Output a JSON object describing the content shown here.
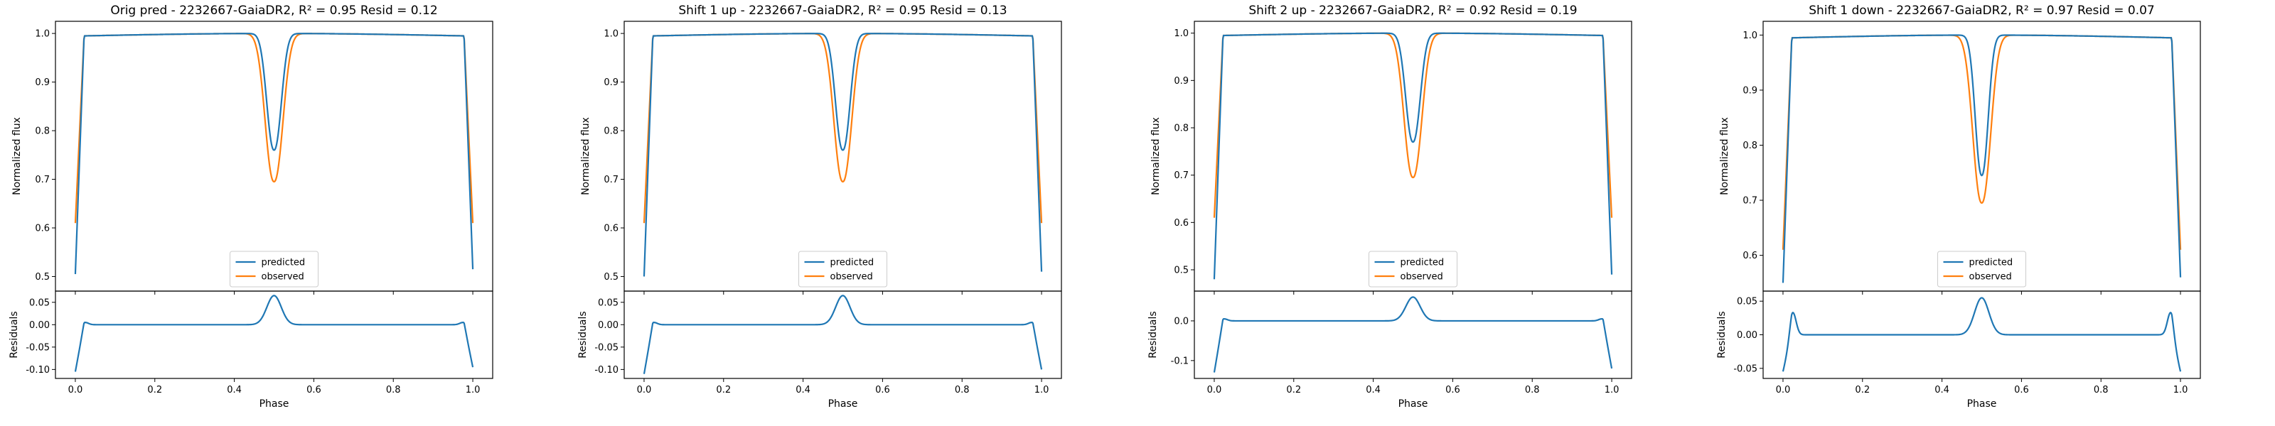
{
  "colors": {
    "predicted": "#1f77b4",
    "observed": "#ff7f0e"
  },
  "legend": {
    "predicted": "predicted",
    "observed": "observed"
  },
  "labels": {
    "x": "Phase",
    "y_top": "Normalized flux",
    "y_bottom": "Residuals"
  },
  "chart_data": [
    {
      "type": "line",
      "title": "Orig pred - 2232667-GaiaDR2, R² = 0.95 Resid = 0.12",
      "xlim": [
        -0.05,
        1.05
      ],
      "ylim": [
        0.47,
        1.025
      ],
      "yticks": [
        0.5,
        0.6,
        0.7,
        0.8,
        0.9,
        1.0
      ],
      "resid_ylim": [
        -0.12,
        0.075
      ],
      "resid_yticks": [
        -0.1,
        -0.05,
        0.0,
        0.05
      ],
      "xticks": [
        0.0,
        0.2,
        0.4,
        0.6,
        0.8,
        1.0
      ],
      "predicted": {
        "edge_start": 0.505,
        "edge_end": 0.515,
        "dip_min": 0.76,
        "dip_width": 0.018
      },
      "observed": {
        "edge_start": 0.61,
        "edge_end": 0.61,
        "dip_min": 0.695,
        "dip_width": 0.022
      },
      "residuals": {
        "start": -0.105,
        "end": -0.095,
        "peak": 0.065,
        "end_bump": 0.005
      },
      "legend_position": "lower center"
    },
    {
      "type": "line",
      "title": "Shift 1 up - 2232667-GaiaDR2, R² = 0.95 Resid = 0.13",
      "xlim": [
        -0.05,
        1.05
      ],
      "ylim": [
        0.47,
        1.025
      ],
      "yticks": [
        0.5,
        0.6,
        0.7,
        0.8,
        0.9,
        1.0
      ],
      "resid_ylim": [
        -0.12,
        0.075
      ],
      "resid_yticks": [
        -0.1,
        -0.05,
        0.0,
        0.05
      ],
      "xticks": [
        0.0,
        0.2,
        0.4,
        0.6,
        0.8,
        1.0
      ],
      "predicted": {
        "edge_start": 0.5,
        "edge_end": 0.51,
        "dip_min": 0.76,
        "dip_width": 0.018
      },
      "observed": {
        "edge_start": 0.61,
        "edge_end": 0.61,
        "dip_min": 0.695,
        "dip_width": 0.022
      },
      "residuals": {
        "start": -0.11,
        "end": -0.1,
        "peak": 0.065,
        "end_bump": 0.005
      },
      "legend_position": "lower center"
    },
    {
      "type": "line",
      "title": "Shift 2 up - 2232667-GaiaDR2, R² = 0.92 Resid = 0.19",
      "xlim": [
        -0.05,
        1.05
      ],
      "ylim": [
        0.455,
        1.025
      ],
      "yticks": [
        0.5,
        0.6,
        0.7,
        0.8,
        0.9,
        1.0
      ],
      "resid_ylim": [
        -0.145,
        0.075
      ],
      "resid_yticks": [
        -0.1,
        0.0
      ],
      "xticks": [
        0.0,
        0.2,
        0.4,
        0.6,
        0.8,
        1.0
      ],
      "predicted": {
        "edge_start": 0.48,
        "edge_end": 0.49,
        "dip_min": 0.77,
        "dip_width": 0.018
      },
      "observed": {
        "edge_start": 0.61,
        "edge_end": 0.61,
        "dip_min": 0.695,
        "dip_width": 0.022
      },
      "residuals": {
        "start": -0.13,
        "end": -0.12,
        "peak": 0.06,
        "end_bump": 0.005
      },
      "legend_position": "lower center"
    },
    {
      "type": "line",
      "title": "Shift 1 down - 2232667-GaiaDR2, R² = 0.97 Resid = 0.07",
      "xlim": [
        -0.05,
        1.05
      ],
      "ylim": [
        0.535,
        1.025
      ],
      "yticks": [
        0.6,
        0.7,
        0.8,
        0.9,
        1.0
      ],
      "resid_ylim": [
        -0.065,
        0.065
      ],
      "resid_yticks": [
        -0.05,
        0.0,
        0.05
      ],
      "xticks": [
        0.0,
        0.2,
        0.4,
        0.6,
        0.8,
        1.0
      ],
      "predicted": {
        "edge_start": 0.55,
        "edge_end": 0.56,
        "dip_min": 0.745,
        "dip_width": 0.016
      },
      "observed": {
        "edge_start": 0.61,
        "edge_end": 0.61,
        "dip_min": 0.695,
        "dip_width": 0.022
      },
      "residuals": {
        "start": -0.055,
        "end": -0.055,
        "peak": 0.055,
        "end_bump": 0.033
      },
      "legend_position": "lower center"
    }
  ]
}
